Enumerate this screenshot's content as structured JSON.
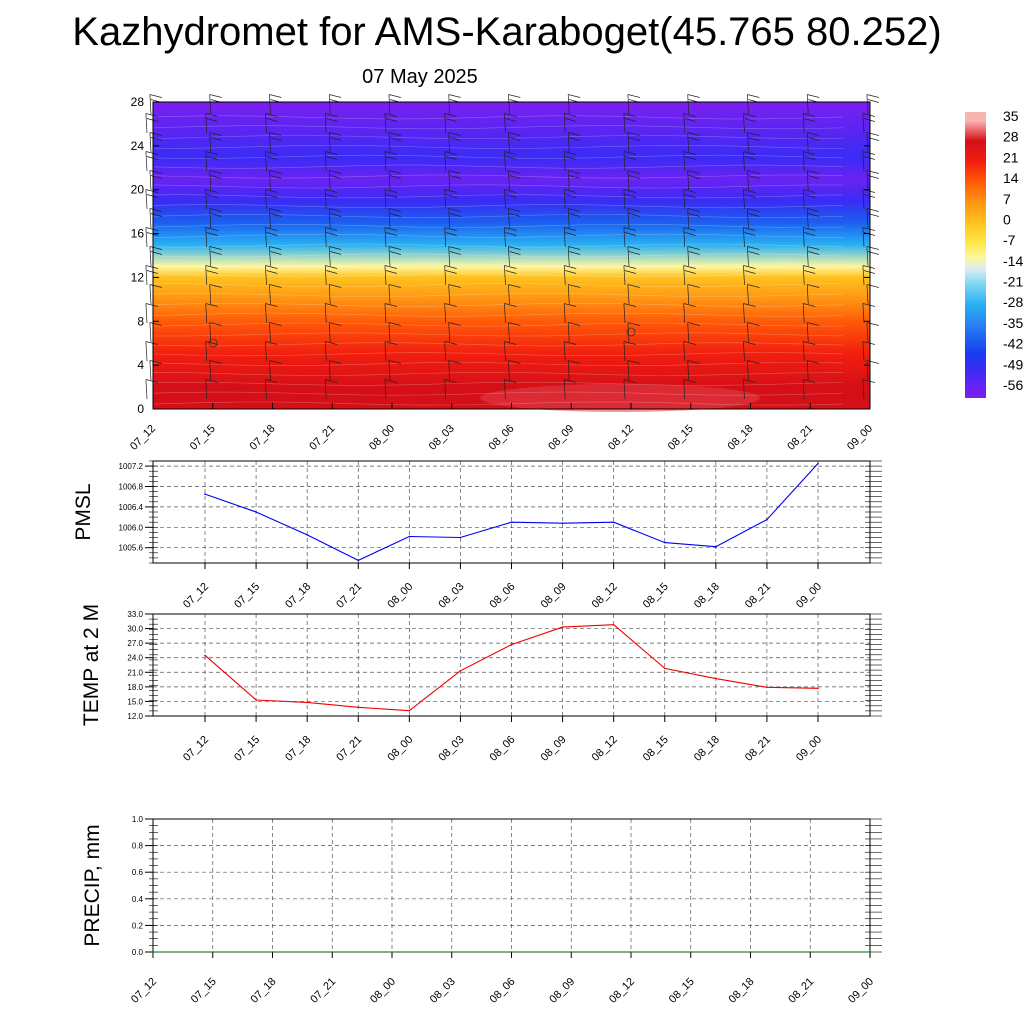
{
  "title": "Kazhydromet for AMS-Karaboget(45.765 80.252)",
  "date": "07 May 2025",
  "colors": {
    "pmsl": "#0000ee",
    "temp": "#ee0000",
    "precip": "#006400"
  },
  "chart_data": [
    {
      "type": "heatmap",
      "name": "temperature-wind-profile",
      "x_ticks": [
        "07_12",
        "07_15",
        "07_18",
        "07_21",
        "08_00",
        "08_03",
        "08_06",
        "08_09",
        "08_12",
        "08_15",
        "08_18",
        "08_21",
        "09_00"
      ],
      "y_ticks": [
        "0",
        "4",
        "8",
        "12",
        "16",
        "20",
        "24",
        "28"
      ],
      "ylim": [
        0,
        28
      ],
      "colorbar": [
        "35",
        "28",
        "21",
        "14",
        "7",
        "0",
        "-7",
        "-14",
        "-21",
        "-28",
        "-35",
        "-42",
        "-49",
        "-56"
      ],
      "profile": [
        {
          "h": 0,
          "v": 24
        },
        {
          "h": 2,
          "v": 22
        },
        {
          "h": 5,
          "v": 19
        },
        {
          "h": 8,
          "v": 12
        },
        {
          "h": 10,
          "v": 6
        },
        {
          "h": 12,
          "v": 0
        },
        {
          "h": 13,
          "v": -14
        },
        {
          "h": 15,
          "v": -28
        },
        {
          "h": 17,
          "v": -42
        },
        {
          "h": 19,
          "v": -55
        },
        {
          "h": 21,
          "v": -56
        },
        {
          "h": 23,
          "v": -52
        },
        {
          "h": 28,
          "v": -60
        }
      ]
    },
    {
      "type": "line",
      "ylabel": "PMSL",
      "x": [
        "07_12",
        "07_15",
        "07_18",
        "07_21",
        "08_00",
        "08_03",
        "08_06",
        "08_09",
        "08_12",
        "08_15",
        "08_18",
        "08_21",
        "09_00"
      ],
      "y_ticks": [
        "1005.6",
        "1006.0",
        "1006.4",
        "1006.8",
        "1007.2"
      ],
      "ylim": [
        1005.3,
        1007.3
      ],
      "values": [
        1006.65,
        1006.3,
        1005.85,
        1005.35,
        1005.82,
        1005.8,
        1006.1,
        1006.08,
        1006.1,
        1005.7,
        1005.62,
        1006.15,
        1007.25
      ]
    },
    {
      "type": "line",
      "ylabel": "TEMP at 2 M",
      "x": [
        "07_12",
        "07_15",
        "07_18",
        "07_21",
        "08_00",
        "08_03",
        "08_06",
        "08_09",
        "08_12",
        "08_15",
        "08_18",
        "08_21",
        "09_00"
      ],
      "y_ticks": [
        "12.0",
        "15.0",
        "18.0",
        "21.0",
        "24.0",
        "27.0",
        "30.0",
        "33.0"
      ],
      "ylim": [
        12,
        33
      ],
      "values": [
        24.5,
        15.3,
        14.8,
        13.8,
        13.1,
        21.3,
        26.7,
        30.3,
        30.8,
        21.8,
        19.7,
        17.9,
        17.7
      ]
    },
    {
      "type": "line",
      "ylabel": "PRECIP, mm",
      "x": [
        "07_12",
        "07_15",
        "07_18",
        "07_21",
        "08_00",
        "08_03",
        "08_06",
        "08_09",
        "08_12",
        "08_15",
        "08_18",
        "08_21",
        "09_00"
      ],
      "y_ticks": [
        "0.0",
        "0.2",
        "0.4",
        "0.6",
        "0.8",
        "1.0"
      ],
      "ylim": [
        0,
        1
      ],
      "values": [
        0,
        0,
        0,
        0,
        0,
        0,
        0,
        0,
        0,
        0,
        0,
        0,
        0
      ]
    }
  ]
}
